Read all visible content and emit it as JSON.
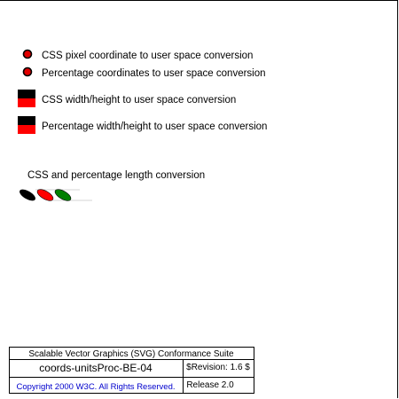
{
  "labels": {
    "css_pixel": "CSS pixel coordinate to user space conversion",
    "percentage_coords": "Percentage coordinates to user space conversion",
    "css_width_height": "CSS width/height to user space conversion",
    "percentage_width_height": "Percentage width/height to user space conversion",
    "length_conversion": "CSS and percentage length conversion"
  },
  "footer": {
    "suite": "Scalable Vector Graphics (SVG) Conformance Suite",
    "test_id": "coords-unitsProc-BE-04",
    "revision": "$Revision: 1.6 $",
    "copyright": "Copyright 2000 W3C. All Rights Reserved.",
    "release": "Release 2.0"
  },
  "colors": {
    "marker_fill": "#e00000",
    "block_top": "#000000",
    "block_bottom": "#ff0000",
    "ellipse_black": "#000000",
    "ellipse_red": "#ff0000",
    "ellipse_green": "#008000",
    "copyright_link": "#0000cc"
  }
}
